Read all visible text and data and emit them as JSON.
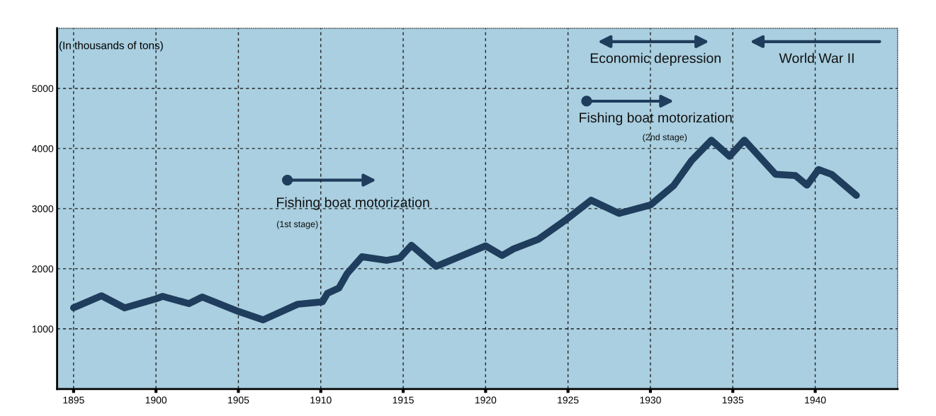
{
  "chart_data": {
    "type": "line",
    "ylabel": "(In thousands of tons)",
    "x": [
      1895,
      1896.7,
      1898.1,
      1900,
      1900.4,
      1902.0,
      1902.8,
      1905,
      1906.5,
      1908.6,
      1910.1,
      1910.4,
      1911.1,
      1911.6,
      1912.5,
      1914,
      1914.8,
      1915.5,
      1917,
      1920,
      1921,
      1921.7,
      1923.2,
      1924.9,
      1926.4,
      1928.1,
      1930,
      1931.4,
      1932.5,
      1933.7,
      1934.8,
      1935.7,
      1937.6,
      1938.8,
      1939.5,
      1940.2,
      1941,
      1942.5
    ],
    "series": [
      {
        "color": "#1f3d5c",
        "values": [
          1350,
          1550,
          1350,
          1500,
          1540,
          1420,
          1530,
          1290,
          1150,
          1410,
          1450,
          1590,
          1680,
          1920,
          2200,
          2140,
          2180,
          2390,
          2040,
          2380,
          2220,
          2330,
          2490,
          2820,
          3140,
          2920,
          3060,
          3380,
          3800,
          4140,
          3870,
          4140,
          3570,
          3550,
          3390,
          3650,
          3570,
          3220
        ]
      }
    ],
    "xlim": [
      1894,
      1945
    ],
    "xticks": [
      1895,
      1900,
      1905,
      1910,
      1915,
      1920,
      1925,
      1930,
      1935,
      1940
    ],
    "ylim": [
      0,
      6000
    ],
    "yticks": [
      1000,
      2000,
      3000,
      4000,
      5000
    ],
    "grid": true,
    "marker": "none",
    "line_style": "solid",
    "annotations": [
      "Fishing boat motorization",
      "(1st stage)",
      "Fishing boat motorization",
      "(2nd stage)",
      "Economic depression",
      "World War II"
    ]
  }
}
